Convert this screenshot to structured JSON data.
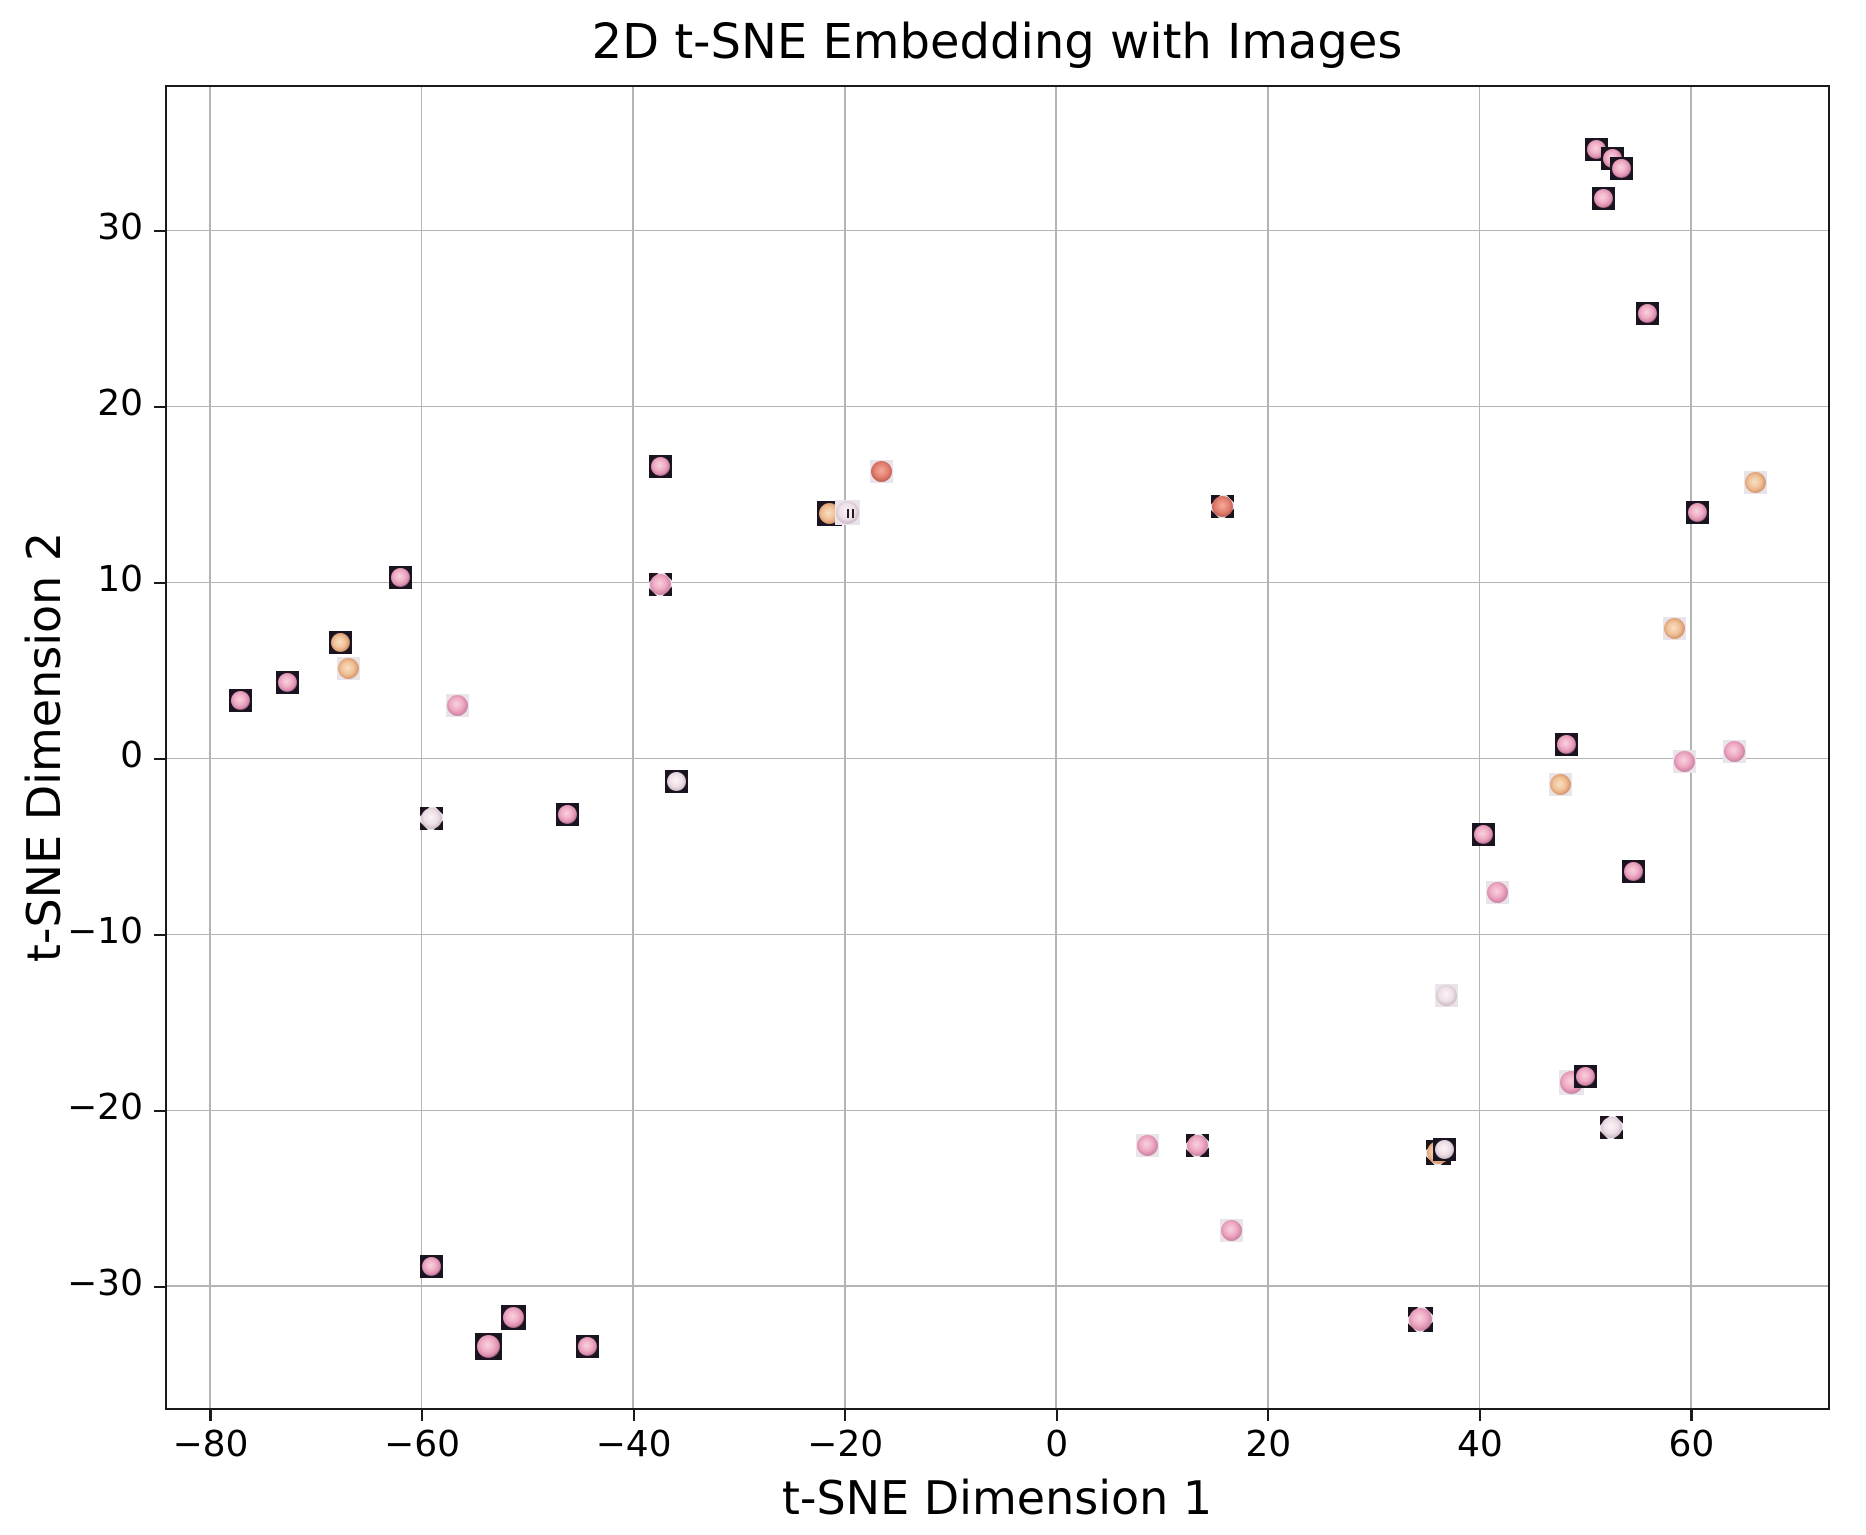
{
  "title": "2D t-SNE Embedding with Images",
  "colors": {
    "background": "#ffffff",
    "gridline": "#b4b4b4",
    "spine": "#1a1a1a",
    "text": "#000000",
    "thumb_dark_bg": "#1a1320",
    "thumb_light_bg": "#e9e3ea",
    "petal_pink": "#efacc5",
    "petal_peach": "#f0c298",
    "petal_pale": "#eddfe6",
    "petal_red": "#e2806f"
  },
  "chart_data": {
    "type": "scatter",
    "title": "2D t-SNE Embedding with Images",
    "xlabel": "t-SNE Dimension 1",
    "ylabel": "t-SNE Dimension 2",
    "xlim": [
      -84.3,
      73.1
    ],
    "ylim": [
      -37.0,
      38.3
    ],
    "x_ticks": [
      -80,
      -60,
      -40,
      -20,
      0,
      20,
      40,
      60
    ],
    "y_ticks": [
      30,
      20,
      10,
      0,
      -10,
      -20,
      -30
    ],
    "grid": true,
    "legend": "none",
    "marker": "small flower photo thumbnails (~23px squares)",
    "points": [
      {
        "x": -77.1,
        "y": 3.3,
        "style": "pink-dark"
      },
      {
        "x": -72.7,
        "y": 4.3,
        "style": "pink-dark"
      },
      {
        "x": -67.7,
        "y": 6.6,
        "style": "peach-dark"
      },
      {
        "x": -66.9,
        "y": 5.1,
        "style": "peach-light"
      },
      {
        "x": -62.0,
        "y": 10.3,
        "style": "pink-dark"
      },
      {
        "x": -56.6,
        "y": 3.0,
        "style": "pink-light"
      },
      {
        "x": -59.1,
        "y": -3.4,
        "style": "pale-corners"
      },
      {
        "x": -46.2,
        "y": -3.2,
        "style": "pink-dark"
      },
      {
        "x": -35.9,
        "y": -1.3,
        "style": "pale-dark"
      },
      {
        "x": -37.4,
        "y": 9.9,
        "style": "pink-corners"
      },
      {
        "x": -37.4,
        "y": 16.6,
        "style": "pink-dark"
      },
      {
        "x": -21.4,
        "y": 13.9,
        "style": "peach-dark",
        "size": 25
      },
      {
        "x": -19.7,
        "y": 14.0,
        "style": "striped",
        "size": 25
      },
      {
        "x": -16.5,
        "y": 16.3,
        "style": "red-light"
      },
      {
        "x": -59.1,
        "y": -28.9,
        "style": "pink-dark"
      },
      {
        "x": -51.3,
        "y": -31.8,
        "style": "pink-dark",
        "size": 25
      },
      {
        "x": -53.7,
        "y": -33.4,
        "style": "pink-dark",
        "size": 27
      },
      {
        "x": -44.3,
        "y": -33.4,
        "style": "pink-dark"
      },
      {
        "x": 15.7,
        "y": 14.3,
        "style": "red-corners"
      },
      {
        "x": 8.6,
        "y": -22.0,
        "style": "pink-light"
      },
      {
        "x": 13.4,
        "y": -22.0,
        "style": "pink-corners"
      },
      {
        "x": 16.6,
        "y": -26.8,
        "style": "pink-light"
      },
      {
        "x": 51.1,
        "y": 34.6,
        "style": "pink-dark"
      },
      {
        "x": 52.6,
        "y": 34.1,
        "style": "pink-dark"
      },
      {
        "x": 53.4,
        "y": 33.5,
        "style": "pink-dark"
      },
      {
        "x": 51.7,
        "y": 31.8,
        "style": "pink-dark"
      },
      {
        "x": 55.9,
        "y": 25.3,
        "style": "pink-dark"
      },
      {
        "x": 66.1,
        "y": 15.7,
        "style": "peach-light"
      },
      {
        "x": 60.6,
        "y": 14.0,
        "style": "pink-dark"
      },
      {
        "x": 58.4,
        "y": 7.4,
        "style": "peach-light"
      },
      {
        "x": 64.1,
        "y": 0.4,
        "style": "pink-light"
      },
      {
        "x": 59.4,
        "y": -0.2,
        "style": "pink-light"
      },
      {
        "x": 48.2,
        "y": 0.8,
        "style": "pink-dark"
      },
      {
        "x": 47.7,
        "y": -1.5,
        "style": "peach-light"
      },
      {
        "x": 40.4,
        "y": -4.3,
        "style": "pink-dark"
      },
      {
        "x": 41.7,
        "y": -7.6,
        "style": "pink-light"
      },
      {
        "x": 54.6,
        "y": -6.4,
        "style": "pink-dark"
      },
      {
        "x": 36.9,
        "y": -13.5,
        "style": "pale-light"
      },
      {
        "x": 48.7,
        "y": -18.4,
        "style": "pink-light",
        "size": 25
      },
      {
        "x": 50.0,
        "y": -18.1,
        "style": "pink-dark"
      },
      {
        "x": 52.5,
        "y": -21.0,
        "style": "pale-corners"
      },
      {
        "x": 36.1,
        "y": -22.4,
        "style": "peach-corners",
        "size": 25
      },
      {
        "x": 36.7,
        "y": -22.2,
        "style": "pale-dark"
      },
      {
        "x": 34.4,
        "y": -31.9,
        "style": "pink-corners",
        "size": 25
      }
    ]
  }
}
